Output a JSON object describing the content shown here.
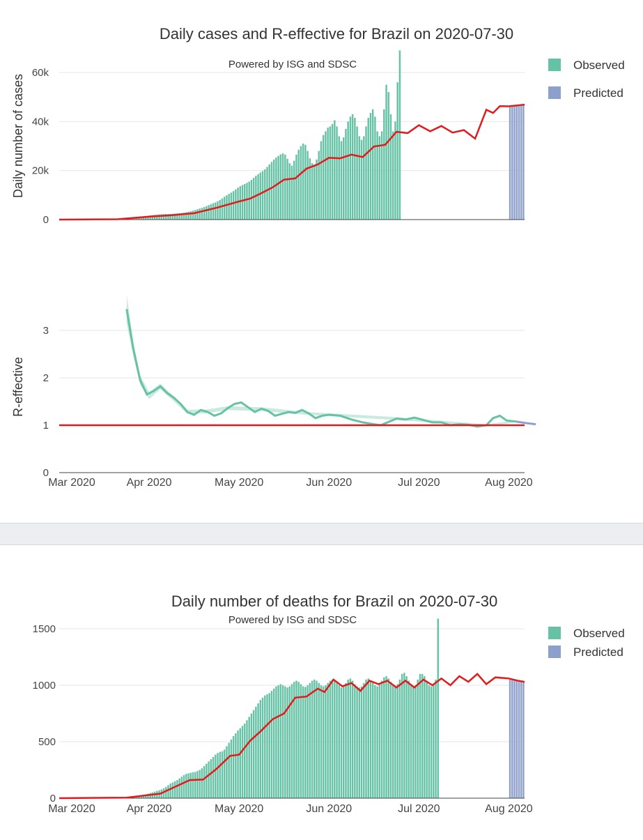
{
  "colors": {
    "observed": "#66c2a5",
    "predicted": "#8da0cb",
    "trend": "#e31a1c",
    "grid": "#e6e6e6",
    "axis": "#444444"
  },
  "chart_data": [
    {
      "id": "cases",
      "type": "bar",
      "title": "Daily cases and R-effective for Brazil on 2020-07-30",
      "subtitle": "Powered by ISG and SDSC",
      "ylabel": "Daily number of cases",
      "ylim": [
        0,
        60000
      ],
      "yticks": [
        0,
        20000,
        40000,
        60000
      ],
      "ytick_labels": [
        "0",
        "20k",
        "40k",
        "60k"
      ],
      "legend": {
        "observed": "Observed",
        "predicted": "Predicted"
      },
      "observed_start": "2020-02-26",
      "observed": [
        0,
        0,
        0,
        0,
        0,
        0,
        0,
        0,
        0,
        0,
        0,
        0,
        0,
        0,
        0,
        0,
        0,
        0,
        0,
        0,
        0,
        0,
        0,
        0,
        0,
        0,
        180,
        210,
        250,
        310,
        390,
        470,
        560,
        670,
        800,
        950,
        1100,
        1250,
        1400,
        1550,
        1700,
        1820,
        1950,
        2050,
        2150,
        2200,
        2250,
        2280,
        2300,
        2350,
        2400,
        2450,
        2520,
        2600,
        2700,
        2850,
        3000,
        3200,
        3400,
        3650,
        3900,
        4200,
        4500,
        4800,
        5100,
        5500,
        5900,
        6300,
        6700,
        7000,
        7500,
        8000,
        8600,
        9300,
        9900,
        10500,
        11000,
        11600,
        12300,
        13000,
        13600,
        14100,
        14500,
        15000,
        15500,
        16200,
        17000,
        17800,
        18500,
        19200,
        19800,
        20500,
        21500,
        22500,
        23500,
        24500,
        25300,
        26000,
        26600,
        27000,
        26500,
        24800,
        23000,
        22000,
        24000,
        26500,
        28500,
        30000,
        31000,
        30500,
        28000,
        25000,
        23000,
        22500,
        24500,
        28000,
        32000,
        34500,
        36000,
        37500,
        38000,
        39000,
        40500,
        38000,
        34000,
        32000,
        33500,
        37000,
        40000,
        42000,
        43000,
        41500,
        38000,
        34000,
        32500,
        34000,
        38000,
        41500,
        43500,
        45000,
        42000,
        36000,
        34000,
        36000,
        45000,
        55000,
        52000,
        43000,
        36000,
        40000,
        56000,
        69000
      ],
      "observed_mod": [
        1.0,
        1.0,
        1.0,
        1.0,
        1.0,
        0.55,
        0.62
      ],
      "predicted_start": "2020-07-31",
      "predicted": [
        46000,
        46200,
        46400,
        46600,
        46700,
        46800,
        46900
      ],
      "trend": [
        [
          0,
          0
        ],
        [
          26,
          150
        ],
        [
          40,
          1200
        ],
        [
          50,
          1800
        ],
        [
          60,
          2600
        ],
        [
          70,
          4800
        ],
        [
          80,
          7400
        ],
        [
          85,
          8600
        ],
        [
          90,
          10800
        ],
        [
          95,
          13200
        ],
        [
          100,
          16300
        ],
        [
          105,
          16800
        ],
        [
          110,
          20800
        ],
        [
          115,
          22500
        ],
        [
          120,
          25200
        ],
        [
          125,
          25000
        ],
        [
          130,
          26500
        ],
        [
          135,
          25500
        ],
        [
          140,
          29800
        ],
        [
          145,
          30500
        ],
        [
          150,
          35800
        ],
        [
          155,
          35300
        ],
        [
          160,
          38500
        ],
        [
          165,
          36000
        ],
        [
          170,
          38200
        ],
        [
          175,
          35500
        ],
        [
          180,
          36500
        ],
        [
          185,
          33000
        ],
        [
          190,
          44800
        ],
        [
          193,
          43500
        ],
        [
          196,
          46300
        ],
        [
          200,
          46200
        ]
      ],
      "trend_pred": [
        [
          200,
          46200
        ],
        [
          207,
          46900
        ]
      ]
    },
    {
      "id": "reff",
      "type": "line",
      "ylabel": "R-effective",
      "ylim": [
        0,
        3.5
      ],
      "yticks": [
        0,
        1,
        2,
        3
      ],
      "ytick_labels": [
        "0",
        "1",
        "2",
        "3"
      ],
      "reference_line": 1,
      "xticks": [
        "Mar 2020",
        "Apr 2020",
        "May 2020",
        "Jun 2020",
        "Jul 2020",
        "Aug 2020"
      ],
      "observed": [
        [
          30,
          3.45
        ],
        [
          33,
          2.6
        ],
        [
          36,
          1.95
        ],
        [
          39,
          1.65
        ],
        [
          42,
          1.72
        ],
        [
          45,
          1.82
        ],
        [
          48,
          1.68
        ],
        [
          51,
          1.58
        ],
        [
          54,
          1.45
        ],
        [
          57,
          1.28
        ],
        [
          60,
          1.22
        ],
        [
          63,
          1.32
        ],
        [
          66,
          1.28
        ],
        [
          69,
          1.2
        ],
        [
          72,
          1.25
        ],
        [
          75,
          1.36
        ],
        [
          78,
          1.45
        ],
        [
          81,
          1.48
        ],
        [
          84,
          1.38
        ],
        [
          87,
          1.28
        ],
        [
          90,
          1.35
        ],
        [
          93,
          1.3
        ],
        [
          96,
          1.2
        ],
        [
          99,
          1.24
        ],
        [
          102,
          1.28
        ],
        [
          105,
          1.26
        ],
        [
          108,
          1.32
        ],
        [
          111,
          1.25
        ],
        [
          114,
          1.15
        ],
        [
          117,
          1.2
        ],
        [
          120,
          1.22
        ],
        [
          125,
          1.2
        ],
        [
          130,
          1.12
        ],
        [
          135,
          1.06
        ],
        [
          140,
          1.02
        ],
        [
          143,
          1.0
        ],
        [
          147,
          1.08
        ],
        [
          150,
          1.14
        ],
        [
          154,
          1.12
        ],
        [
          158,
          1.16
        ],
        [
          162,
          1.11
        ],
        [
          166,
          1.06
        ],
        [
          170,
          1.06
        ],
        [
          174,
          1.0
        ],
        [
          178,
          1.02
        ],
        [
          182,
          1.01
        ],
        [
          186,
          0.97
        ],
        [
          190,
          1.0
        ],
        [
          193,
          1.15
        ],
        [
          196,
          1.2
        ],
        [
          199,
          1.1
        ],
        [
          203,
          1.08
        ]
      ],
      "band": [
        [
          30,
          3.75,
          3.15
        ],
        [
          33,
          2.75,
          2.45
        ],
        [
          36,
          2.05,
          1.85
        ],
        [
          40,
          1.7,
          1.55
        ],
        [
          45,
          1.88,
          1.76
        ],
        [
          50,
          1.65,
          1.55
        ],
        [
          57,
          1.33,
          1.24
        ],
        [
          65,
          1.33,
          1.25
        ],
        [
          75,
          1.4,
          1.32
        ],
        [
          90,
          1.38,
          1.3
        ],
        [
          110,
          1.28,
          1.22
        ],
        [
          150,
          1.17,
          1.11
        ],
        [
          190,
          1.02,
          0.97
        ],
        [
          203,
          1.1,
          1.06
        ]
      ],
      "predicted": [
        [
          203,
          1.08
        ],
        [
          207,
          1.05
        ],
        [
          212,
          1.02
        ]
      ]
    },
    {
      "id": "deaths",
      "type": "bar",
      "title": "Daily number of deaths for Brazil on 2020-07-30",
      "subtitle": "Powered by ISG and SDSC",
      "ylim": [
        0,
        1500
      ],
      "yticks": [
        0,
        500,
        1000,
        1500
      ],
      "ytick_labels": [
        "0",
        "500",
        "1000",
        "1500"
      ],
      "xticks": [
        "Mar 2020",
        "Apr 2020",
        "May 2020",
        "Jun 2020",
        "Jul 2020",
        "Aug 2020"
      ],
      "legend": {
        "observed": "Observed",
        "predicted": "Predicted"
      },
      "observed_start": "2020-02-26",
      "observed": [
        0,
        0,
        0,
        0,
        0,
        0,
        0,
        0,
        0,
        0,
        0,
        0,
        0,
        0,
        0,
        0,
        0,
        0,
        0,
        0,
        0,
        0,
        0,
        0,
        0,
        0,
        0,
        0,
        2,
        4,
        6,
        9,
        12,
        15,
        18,
        22,
        26,
        30,
        34,
        40,
        46,
        52,
        58,
        64,
        70,
        78,
        88,
        100,
        115,
        130,
        140,
        150,
        160,
        175,
        190,
        205,
        215,
        220,
        225,
        230,
        232,
        240,
        250,
        265,
        285,
        305,
        325,
        345,
        365,
        385,
        400,
        410,
        415,
        430,
        460,
        490,
        520,
        550,
        575,
        600,
        620,
        640,
        660,
        690,
        720,
        750,
        780,
        810,
        840,
        870,
        890,
        910,
        920,
        930,
        950,
        970,
        990,
        1000,
        1010,
        1000,
        990,
        980,
        990,
        1010,
        1030,
        1040,
        1030,
        1010,
        990,
        985,
        1000,
        1020,
        1040,
        1050,
        1040,
        1020,
        1000,
        990,
        1000,
        1020,
        1040,
        1050,
        1040,
        1020,
        1000,
        980,
        990,
        1020,
        1050,
        1060,
        1040,
        1010,
        990,
        980,
        990,
        1020,
        1050,
        1060,
        1040,
        1020,
        1000,
        990,
        1010,
        1040,
        1070,
        1080,
        1060,
        1030,
        1000,
        990,
        1010,
        1050,
        1100,
        1110,
        1080,
        1040,
        1000,
        990,
        1000,
        1050,
        1100,
        1100,
        1080,
        1040,
        1000,
        990,
        1000,
        1050,
        1590
      ],
      "predicted_start": "2020-07-31",
      "predicted": [
        1050,
        1045,
        1040,
        1035,
        1030,
        1028,
        1025
      ],
      "trend": [
        [
          0,
          0
        ],
        [
          30,
          5
        ],
        [
          45,
          40
        ],
        [
          52,
          105
        ],
        [
          58,
          160
        ],
        [
          64,
          165
        ],
        [
          70,
          260
        ],
        [
          76,
          375
        ],
        [
          80,
          385
        ],
        [
          85,
          510
        ],
        [
          90,
          600
        ],
        [
          95,
          700
        ],
        [
          100,
          750
        ],
        [
          105,
          890
        ],
        [
          110,
          900
        ],
        [
          115,
          970
        ],
        [
          118,
          940
        ],
        [
          122,
          1050
        ],
        [
          126,
          990
        ],
        [
          130,
          1020
        ],
        [
          134,
          950
        ],
        [
          138,
          1040
        ],
        [
          142,
          1010
        ],
        [
          146,
          1040
        ],
        [
          150,
          980
        ],
        [
          154,
          1040
        ],
        [
          158,
          980
        ],
        [
          162,
          1050
        ],
        [
          166,
          1000
        ],
        [
          170,
          1060
        ],
        [
          174,
          1000
        ],
        [
          178,
          1080
        ],
        [
          182,
          1030
        ],
        [
          186,
          1100
        ],
        [
          190,
          1010
        ],
        [
          194,
          1070
        ],
        [
          200,
          1060
        ]
      ],
      "trend_pred": [
        [
          200,
          1060
        ],
        [
          204,
          1040
        ],
        [
          207,
          1030
        ]
      ]
    }
  ]
}
